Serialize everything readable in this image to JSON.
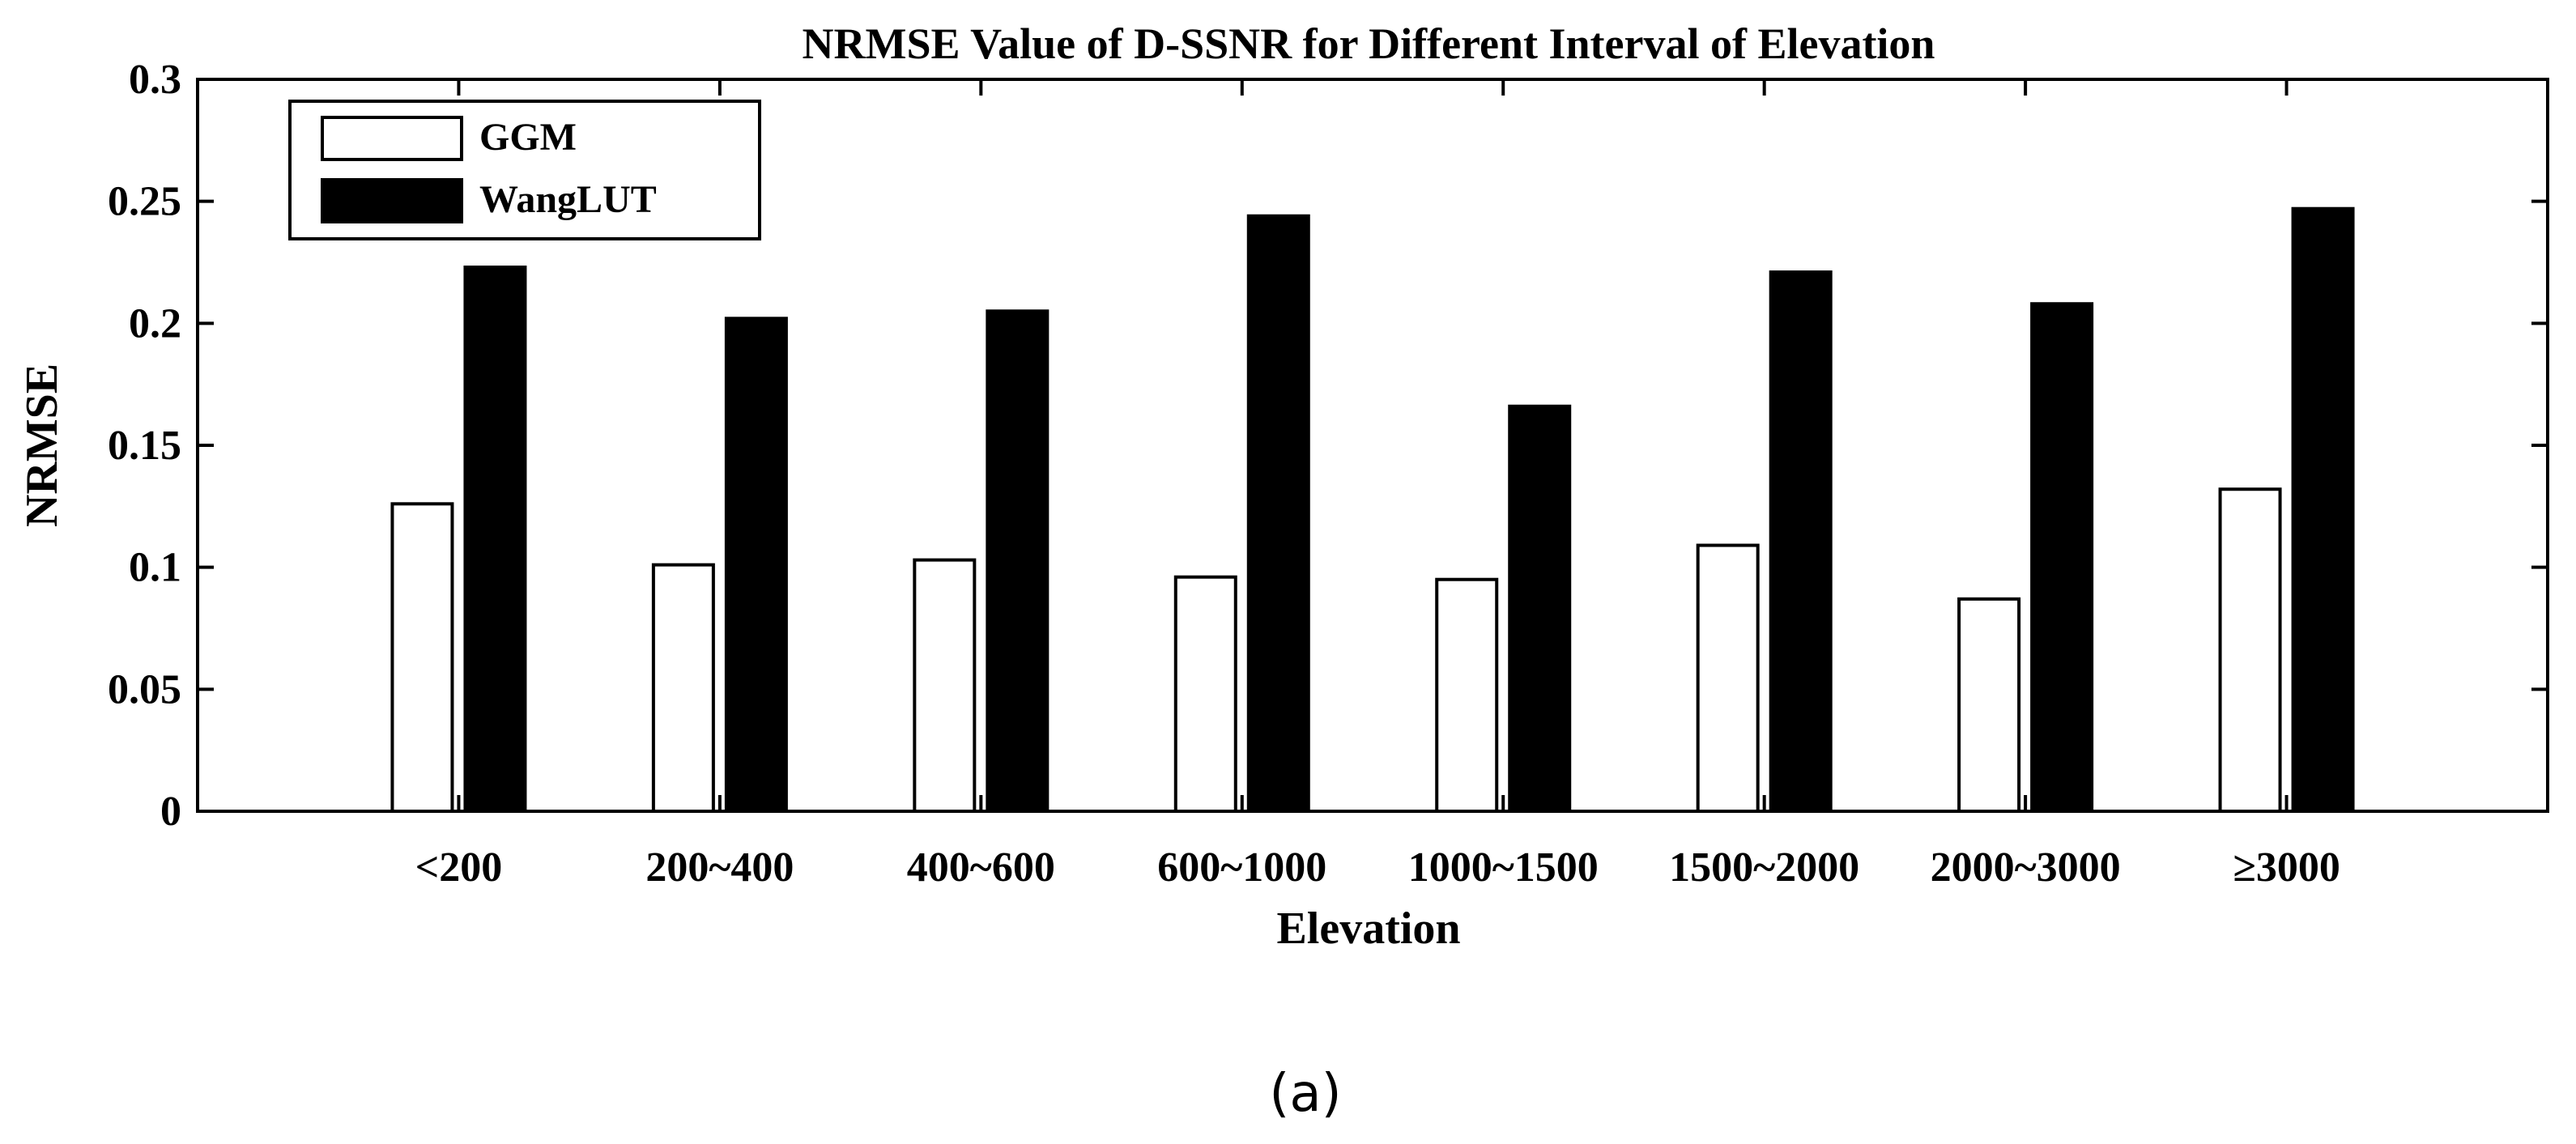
{
  "chart_data": {
    "type": "bar",
    "title": "NRMSE Value of D-SSNR for Different Interval of Elevation",
    "xlabel": "Elevation",
    "ylabel": "NRMSE",
    "categories": [
      "<200",
      "200~400",
      "400~600",
      "600~1000",
      "1000~1500",
      "1500~2000",
      "2000~3000",
      "≥3000"
    ],
    "series": [
      {
        "name": "GGM",
        "fill": "#ffffff",
        "values": [
          0.126,
          0.101,
          0.103,
          0.096,
          0.095,
          0.109,
          0.087,
          0.132
        ]
      },
      {
        "name": "WangLUT",
        "fill": "#000000",
        "values": [
          0.223,
          0.202,
          0.205,
          0.244,
          0.166,
          0.221,
          0.208,
          0.247
        ]
      }
    ],
    "ylim": [
      0,
      0.3
    ],
    "yticks": [
      0,
      0.05,
      0.1,
      0.15,
      0.2,
      0.25,
      0.3
    ],
    "ytick_labels": [
      "0",
      "0.05",
      "0.1",
      "0.15",
      "0.2",
      "0.25",
      "0.3"
    ],
    "grid": false,
    "legend_position": "top-left"
  },
  "caption": "(a)"
}
